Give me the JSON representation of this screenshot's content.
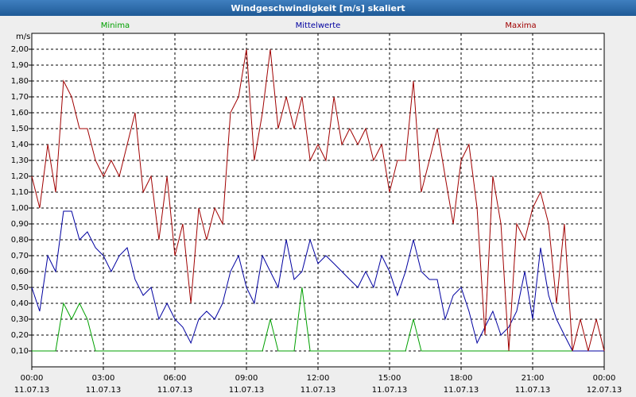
{
  "chart_data": {
    "type": "line",
    "title": "Windgeschwindigkeit [m/s] skaliert",
    "y_label": "m/s",
    "x": [
      0,
      0.33,
      0.67,
      1,
      1.33,
      1.67,
      2,
      2.33,
      2.67,
      3,
      3.33,
      3.67,
      4,
      4.33,
      4.67,
      5,
      5.33,
      5.67,
      6,
      6.33,
      6.67,
      7,
      7.33,
      7.67,
      8,
      8.33,
      8.67,
      9,
      9.33,
      9.67,
      10,
      10.33,
      10.67,
      11,
      11.33,
      11.67,
      12,
      12.33,
      12.67,
      13,
      13.33,
      13.67,
      14,
      14.33,
      14.67,
      15,
      15.33,
      15.67,
      16,
      16.33,
      16.67,
      17,
      17.33,
      17.67,
      18,
      18.33,
      18.67,
      19,
      19.33,
      19.67,
      20,
      20.33,
      20.67,
      21,
      21.33,
      21.67,
      22,
      22.33,
      22.67,
      23,
      23.33,
      23.67,
      24
    ],
    "series": [
      {
        "name": "Minima",
        "color": "#00a000",
        "values": [
          0.1,
          0.1,
          0.1,
          0.1,
          0.4,
          0.3,
          0.4,
          0.3,
          0.1,
          0.1,
          0.1,
          0.1,
          0.1,
          0.1,
          0.1,
          0.1,
          0.1,
          0.1,
          0.1,
          0.1,
          0.1,
          0.1,
          0.1,
          0.1,
          0.1,
          0.1,
          0.1,
          0.1,
          0.1,
          0.1,
          0.3,
          0.1,
          0.1,
          0.1,
          0.5,
          0.1,
          0.1,
          0.1,
          0.1,
          0.1,
          0.1,
          0.1,
          0.1,
          0.1,
          0.1,
          0.1,
          0.1,
          0.1,
          0.3,
          0.1,
          0.1,
          0.1,
          0.1,
          0.1,
          0.1,
          0.1,
          0.1,
          0.1,
          0.1,
          0.1,
          0.1,
          0.1,
          0.1,
          0.1,
          0.1,
          0.1,
          0.1,
          0.1,
          0.1,
          0.1,
          0.1,
          0.1,
          0.1
        ]
      },
      {
        "name": "Mittelwerte",
        "color": "#0000a0",
        "values": [
          0.5,
          0.35,
          0.7,
          0.6,
          0.98,
          0.98,
          0.8,
          0.85,
          0.75,
          0.7,
          0.6,
          0.7,
          0.75,
          0.55,
          0.45,
          0.5,
          0.3,
          0.4,
          0.3,
          0.25,
          0.15,
          0.3,
          0.35,
          0.3,
          0.4,
          0.6,
          0.7,
          0.5,
          0.4,
          0.7,
          0.6,
          0.5,
          0.8,
          0.55,
          0.6,
          0.8,
          0.65,
          0.7,
          0.65,
          0.6,
          0.55,
          0.5,
          0.6,
          0.5,
          0.7,
          0.6,
          0.45,
          0.6,
          0.8,
          0.6,
          0.55,
          0.55,
          0.3,
          0.45,
          0.5,
          0.35,
          0.15,
          0.25,
          0.35,
          0.2,
          0.25,
          0.35,
          0.6,
          0.3,
          0.75,
          0.45,
          0.3,
          0.2,
          0.1,
          0.1,
          0.1,
          0.1,
          0.1
        ]
      },
      {
        "name": "Maxima",
        "color": "#a00000",
        "values": [
          1.2,
          1.0,
          1.4,
          1.1,
          1.8,
          1.7,
          1.5,
          1.5,
          1.3,
          1.2,
          1.3,
          1.2,
          1.4,
          1.6,
          1.1,
          1.2,
          0.8,
          1.2,
          0.7,
          0.9,
          0.4,
          1.0,
          0.8,
          1.0,
          0.9,
          1.6,
          1.7,
          2.0,
          1.3,
          1.6,
          2.0,
          1.5,
          1.7,
          1.5,
          1.7,
          1.3,
          1.4,
          1.3,
          1.7,
          1.4,
          1.5,
          1.4,
          1.5,
          1.3,
          1.4,
          1.1,
          1.3,
          1.3,
          1.8,
          1.1,
          1.3,
          1.5,
          1.2,
          0.9,
          1.3,
          1.4,
          1.0,
          0.2,
          1.2,
          0.9,
          0.1,
          0.9,
          0.8,
          1.0,
          1.1,
          0.9,
          0.4,
          0.9,
          0.1,
          0.3,
          0.1,
          0.3,
          0.1
        ]
      }
    ],
    "xlim": [
      0,
      24
    ],
    "xticks": [
      {
        "value": 0,
        "label": "00:00",
        "date": "11.07.13"
      },
      {
        "value": 3,
        "label": "03:00",
        "date": "11.07.13"
      },
      {
        "value": 6,
        "label": "06:00",
        "date": "11.07.13"
      },
      {
        "value": 9,
        "label": "09:00",
        "date": "11.07.13"
      },
      {
        "value": 12,
        "label": "12:00",
        "date": "11.07.13"
      },
      {
        "value": 15,
        "label": "15:00",
        "date": "11.07.13"
      },
      {
        "value": 18,
        "label": "18:00",
        "date": "11.07.13"
      },
      {
        "value": 21,
        "label": "21:00",
        "date": "11.07.13"
      },
      {
        "value": 24,
        "label": "00:00",
        "date": "12.07.13"
      }
    ],
    "ylim": [
      0,
      2.1
    ],
    "yticks": [
      {
        "value": 0.1,
        "label": "0,10"
      },
      {
        "value": 0.2,
        "label": "0,20"
      },
      {
        "value": 0.3,
        "label": "0,30"
      },
      {
        "value": 0.4,
        "label": "0,40"
      },
      {
        "value": 0.5,
        "label": "0,50"
      },
      {
        "value": 0.6,
        "label": "0,60"
      },
      {
        "value": 0.7,
        "label": "0,70"
      },
      {
        "value": 0.8,
        "label": "0,80"
      },
      {
        "value": 0.9,
        "label": "0,90"
      },
      {
        "value": 1.0,
        "label": "1,00"
      },
      {
        "value": 1.1,
        "label": "1,10"
      },
      {
        "value": 1.2,
        "label": "1,20"
      },
      {
        "value": 1.3,
        "label": "1,30"
      },
      {
        "value": 1.4,
        "label": "1,40"
      },
      {
        "value": 1.5,
        "label": "1,50"
      },
      {
        "value": 1.6,
        "label": "1,60"
      },
      {
        "value": 1.7,
        "label": "1,70"
      },
      {
        "value": 1.8,
        "label": "1,80"
      },
      {
        "value": 1.9,
        "label": "1,90"
      },
      {
        "value": 2.0,
        "label": "2,00"
      }
    ],
    "grid": true
  }
}
